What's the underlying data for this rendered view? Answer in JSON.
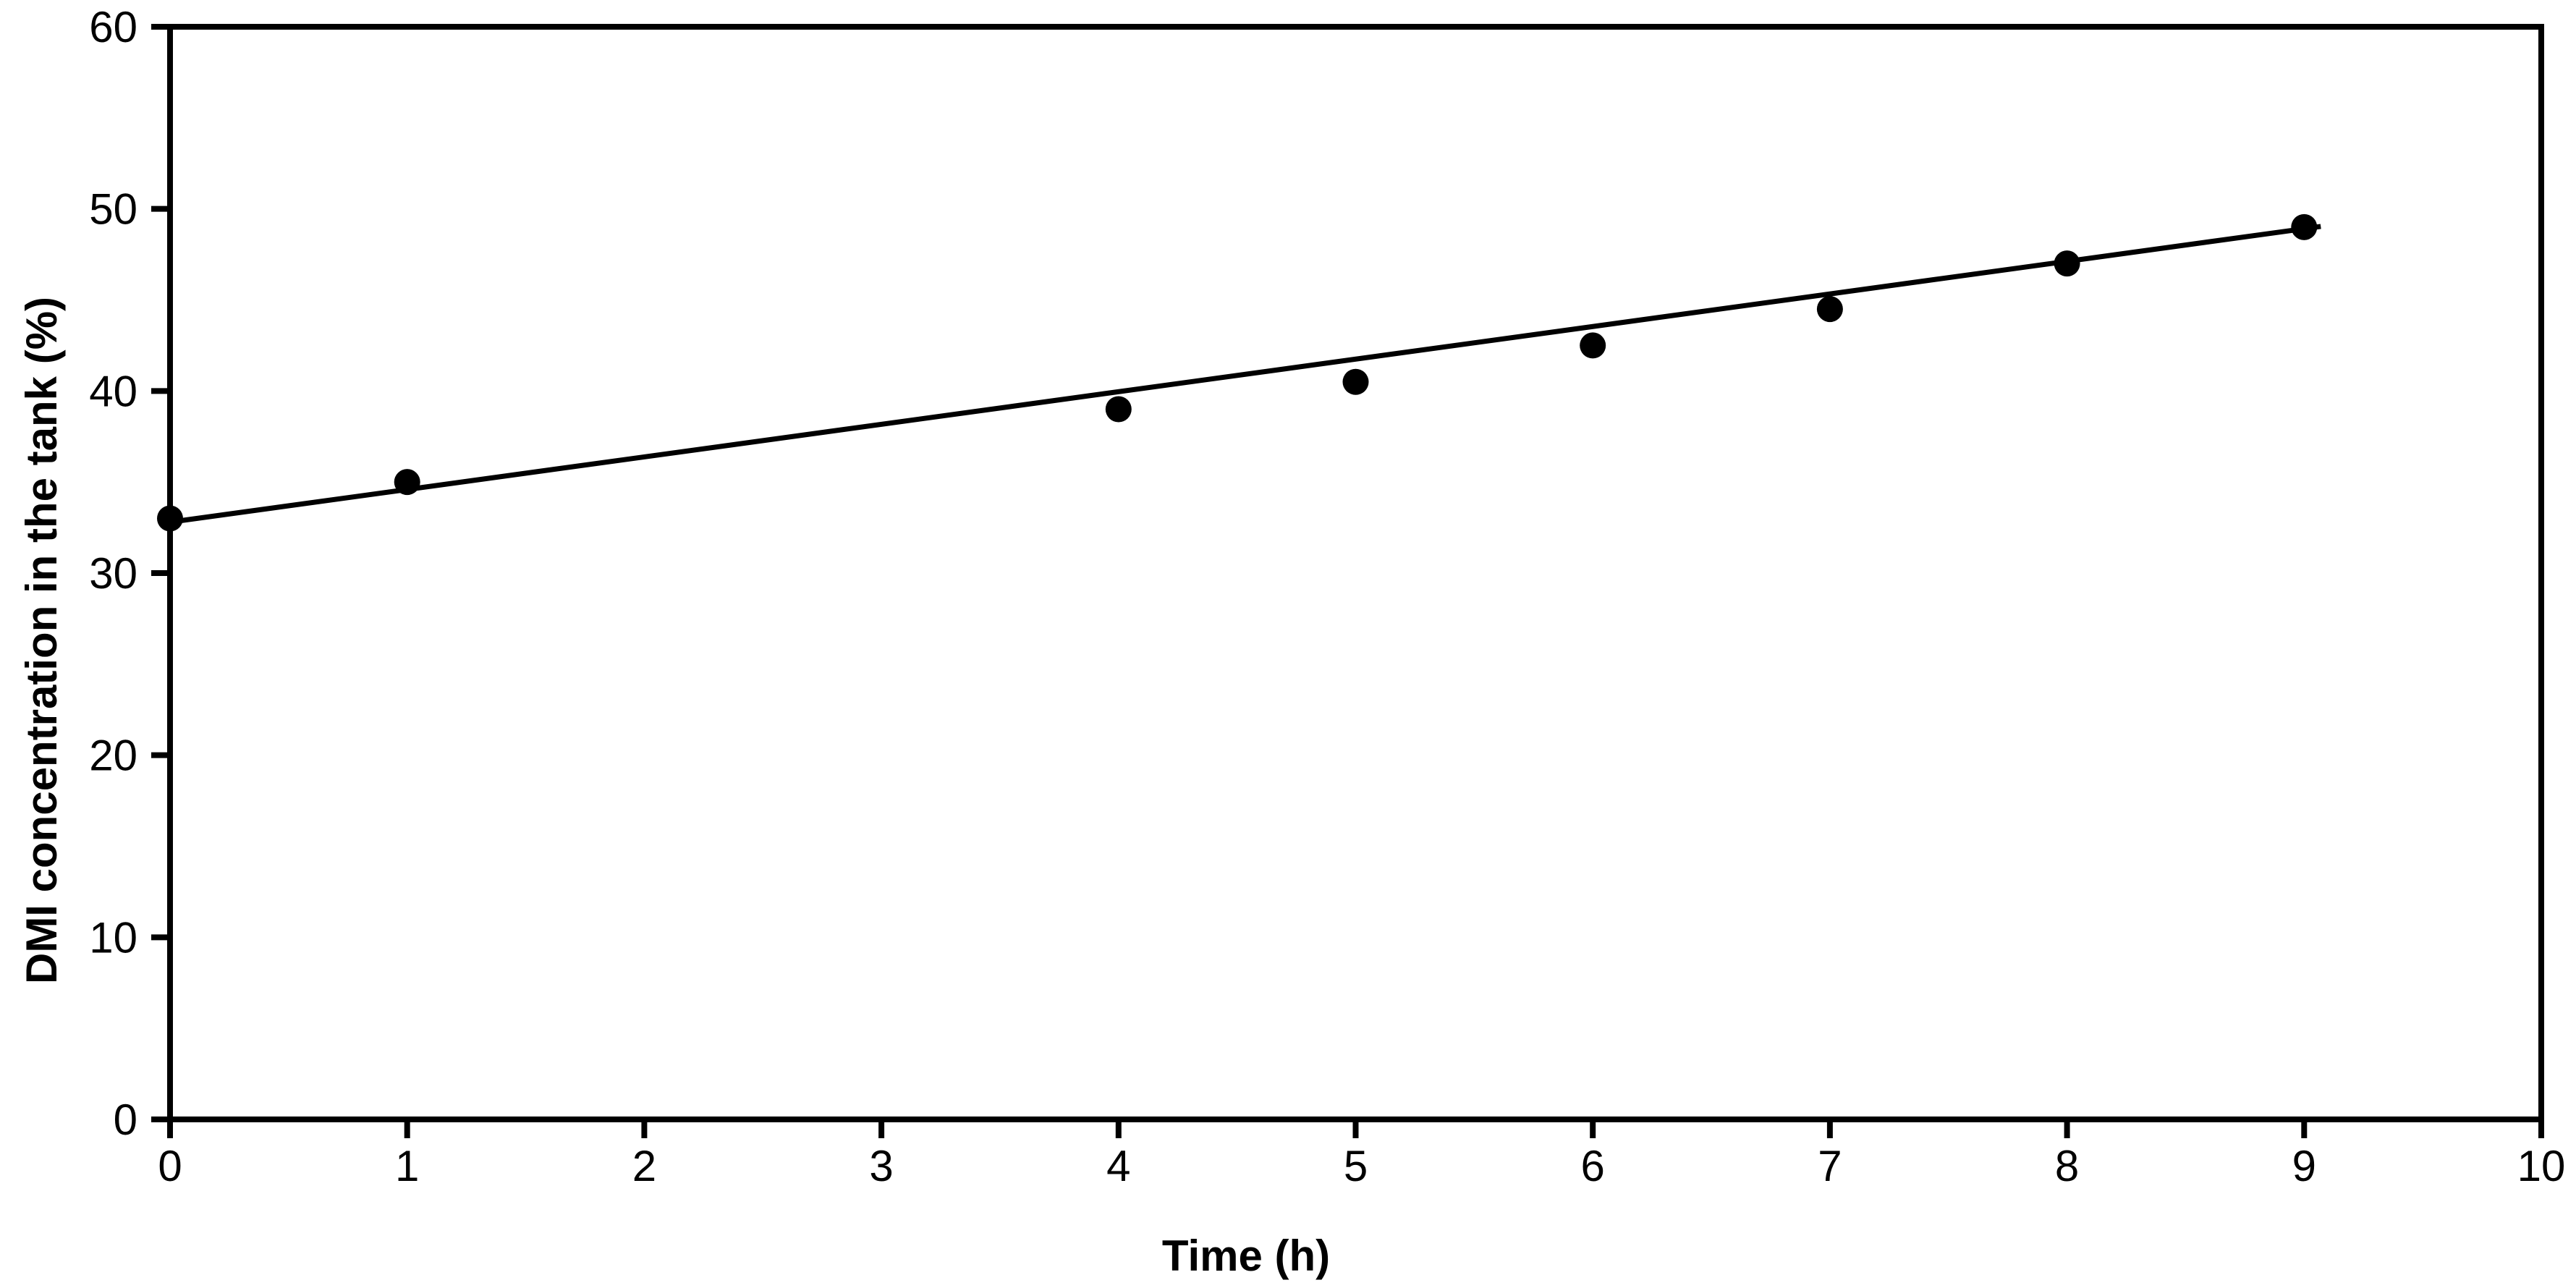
{
  "figure": {
    "background_color": "#ffffff",
    "foreground_color": "#000000"
  },
  "chart_data": {
    "type": "scatter",
    "title": "",
    "xlabel": "Time (h)",
    "ylabel": "DMI concentration in the tank (%)",
    "xlim": [
      0,
      10
    ],
    "ylim": [
      0,
      60
    ],
    "xticks": [
      0,
      1,
      2,
      3,
      4,
      5,
      6,
      7,
      8,
      9,
      10
    ],
    "yticks": [
      0,
      10,
      20,
      30,
      40,
      50,
      60
    ],
    "grid": false,
    "legend_position": "none",
    "series": [
      {
        "name": "DMI concentration in the tank",
        "marker": "filled-circle",
        "color": "#000000",
        "x": [
          0,
          1,
          4,
          5,
          6,
          7,
          8,
          9
        ],
        "y": [
          33,
          35,
          39,
          40.5,
          42.5,
          44.5,
          47,
          49
        ]
      }
    ],
    "trendline": {
      "type": "linear",
      "slope": 1.79,
      "intercept": 32.8,
      "x_start": 0,
      "x_end": 9.07,
      "color": "#000000"
    }
  }
}
